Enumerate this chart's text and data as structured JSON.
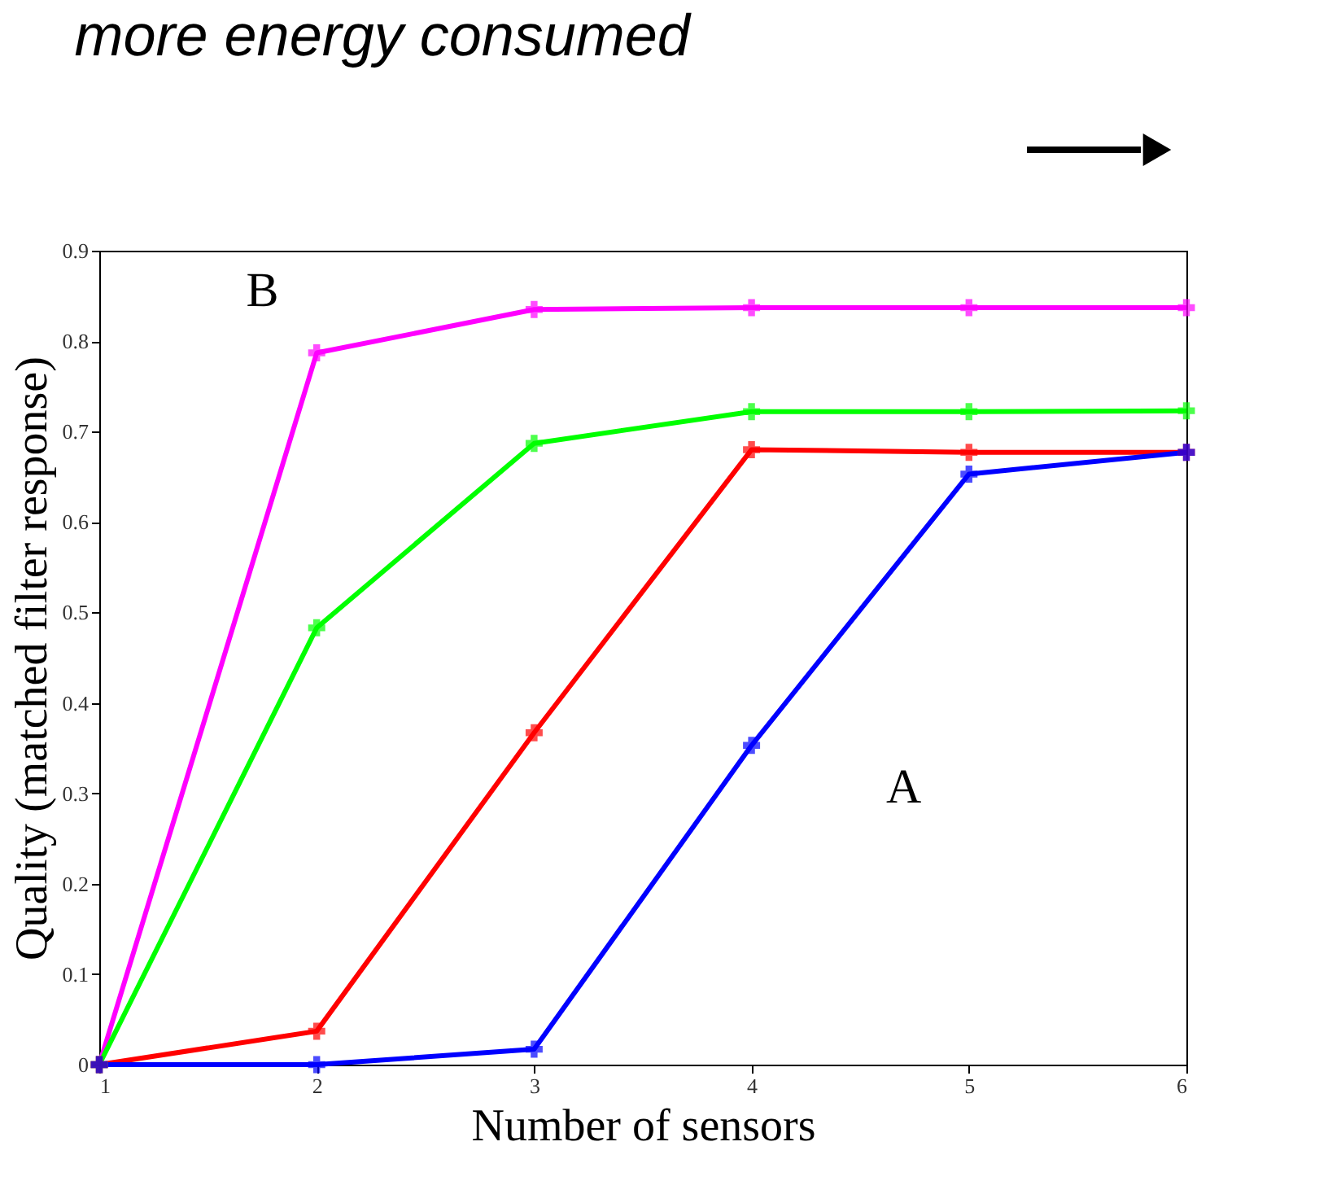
{
  "chart_data": {
    "type": "line",
    "title": "more energy consumed",
    "xlabel": "Number of sensors",
    "ylabel": "Quality (matched filter response)",
    "x": [
      1,
      2,
      3,
      4,
      5,
      6
    ],
    "series": [
      {
        "color": "#ff00ff",
        "values": [
          0,
          0.787,
          0.835,
          0.837,
          0.837,
          0.837
        ]
      },
      {
        "color": "#00ff00",
        "values": [
          0,
          0.483,
          0.687,
          0.722,
          0.722,
          0.723
        ]
      },
      {
        "color": "#ff0000",
        "values": [
          0,
          0.037,
          0.367,
          0.68,
          0.677,
          0.677
        ]
      },
      {
        "color": "#0000ff",
        "values": [
          0,
          0,
          0.017,
          0.353,
          0.653,
          0.677
        ]
      }
    ],
    "xlim": [
      1,
      6
    ],
    "xticks": [
      1,
      2,
      3,
      4,
      5,
      6
    ],
    "ylim": [
      0,
      0.9
    ],
    "yticks": [
      0,
      0.1,
      0.2,
      0.3,
      0.4,
      0.5,
      0.6,
      0.7,
      0.8,
      0.9
    ],
    "annotations": [
      "B",
      "A"
    ],
    "marker": "cross",
    "line_style": "solid",
    "grid": false,
    "legend": false
  }
}
